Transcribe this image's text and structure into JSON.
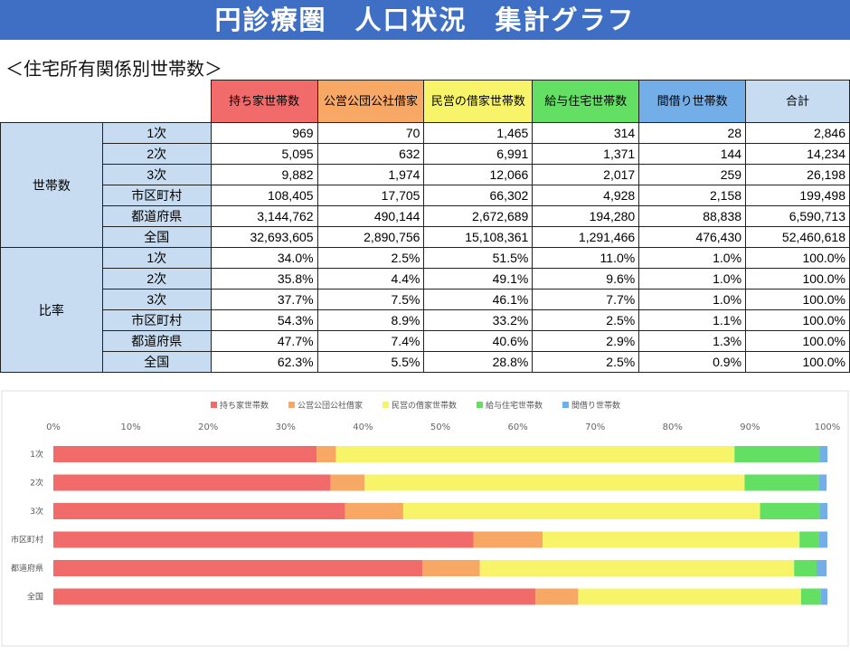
{
  "title": "円診療圏　人口状況　集計グラフ",
  "section_heading": "＜住宅所有関係別世帯数＞",
  "columns": [
    {
      "label": "持ち家世帯数",
      "color": "#f26b6b"
    },
    {
      "label": "公営公団公社借家",
      "color": "#f8a865"
    },
    {
      "label": "民営の借家世帯数",
      "color": "#f7f46a"
    },
    {
      "label": "給与住宅世帯数",
      "color": "#63e063"
    },
    {
      "label": "間借り世帯数",
      "color": "#74aee8"
    },
    {
      "label": "合計",
      "color": "#c7dcf0"
    }
  ],
  "groups": [
    {
      "label": "世帯数",
      "rows": [
        {
          "label": "1次",
          "values": [
            "969",
            "70",
            "1,465",
            "314",
            "28",
            "2,846"
          ]
        },
        {
          "label": "2次",
          "values": [
            "5,095",
            "632",
            "6,991",
            "1,371",
            "144",
            "14,234"
          ]
        },
        {
          "label": "3次",
          "values": [
            "9,882",
            "1,974",
            "12,066",
            "2,017",
            "259",
            "26,198"
          ]
        },
        {
          "label": "市区町村",
          "values": [
            "108,405",
            "17,705",
            "66,302",
            "4,928",
            "2,158",
            "199,498"
          ]
        },
        {
          "label": "都道府県",
          "values": [
            "3,144,762",
            "490,144",
            "2,672,689",
            "194,280",
            "88,838",
            "6,590,713"
          ]
        },
        {
          "label": "全国",
          "values": [
            "32,693,605",
            "2,890,756",
            "15,108,361",
            "1,291,466",
            "476,430",
            "52,460,618"
          ]
        }
      ]
    },
    {
      "label": "比率",
      "rows": [
        {
          "label": "1次",
          "values": [
            "34.0%",
            "2.5%",
            "51.5%",
            "11.0%",
            "1.0%",
            "100.0%"
          ]
        },
        {
          "label": "2次",
          "values": [
            "35.8%",
            "4.4%",
            "49.1%",
            "9.6%",
            "1.0%",
            "100.0%"
          ]
        },
        {
          "label": "3次",
          "values": [
            "37.7%",
            "7.5%",
            "46.1%",
            "7.7%",
            "1.0%",
            "100.0%"
          ]
        },
        {
          "label": "市区町村",
          "values": [
            "54.3%",
            "8.9%",
            "33.2%",
            "2.5%",
            "1.1%",
            "100.0%"
          ]
        },
        {
          "label": "都道府県",
          "values": [
            "47.7%",
            "7.4%",
            "40.6%",
            "2.9%",
            "1.3%",
            "100.0%"
          ]
        },
        {
          "label": "全国",
          "values": [
            "62.3%",
            "5.5%",
            "28.8%",
            "2.5%",
            "0.9%",
            "100.0%"
          ]
        }
      ]
    }
  ],
  "chart_data": {
    "type": "bar",
    "orientation": "horizontal",
    "stacked": true,
    "percent": true,
    "categories": [
      "1次",
      "2次",
      "3次",
      "市区町村",
      "都道府県",
      "全国"
    ],
    "xlim": [
      0,
      100
    ],
    "xticks": [
      "0%",
      "10%",
      "20%",
      "30%",
      "40%",
      "50%",
      "60%",
      "70%",
      "80%",
      "90%",
      "100%"
    ],
    "legend_position": "top",
    "grid": false,
    "series": [
      {
        "name": "持ち家世帯数",
        "color": "#f26b6b",
        "values": [
          34.0,
          35.8,
          37.7,
          54.3,
          47.7,
          62.3
        ]
      },
      {
        "name": "公営公団公社借家",
        "color": "#f8a865",
        "values": [
          2.5,
          4.4,
          7.5,
          8.9,
          7.4,
          5.5
        ]
      },
      {
        "name": "民営の借家世帯数",
        "color": "#f7f46a",
        "values": [
          51.5,
          49.1,
          46.1,
          33.2,
          40.6,
          28.8
        ]
      },
      {
        "name": "給与住宅世帯数",
        "color": "#63e063",
        "values": [
          11.0,
          9.6,
          7.7,
          2.5,
          2.9,
          2.5
        ]
      },
      {
        "name": "間借り世帯数",
        "color": "#74aee8",
        "values": [
          1.0,
          1.0,
          1.0,
          1.1,
          1.3,
          0.9
        ]
      }
    ]
  }
}
